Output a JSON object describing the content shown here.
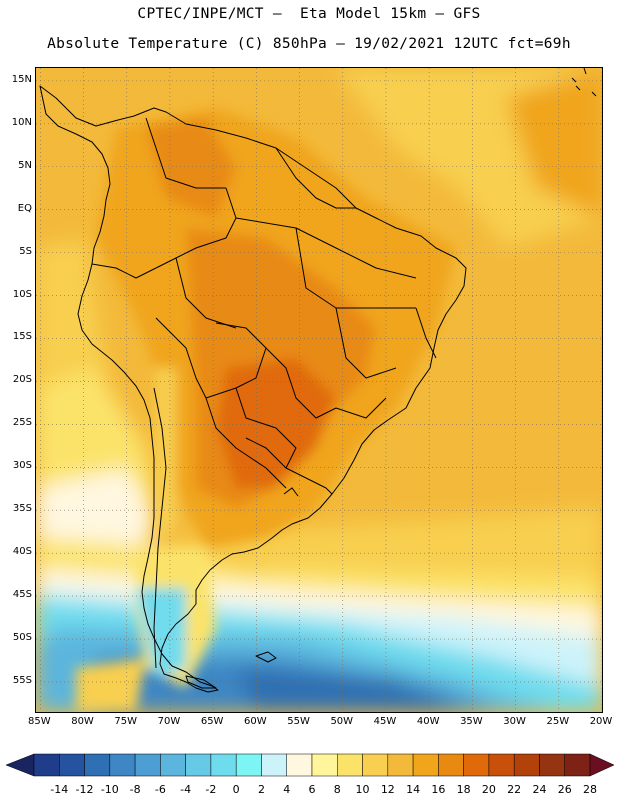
{
  "header": {
    "title_line1": "CPTEC/INPE/MCT –  Eta Model 15km – GFS",
    "title_line2": "Absolute Temperature (C) 850hPa – 19/02/2021 12UTC fct=69h"
  },
  "map": {
    "lon_range": [
      -85.5,
      -20
    ],
    "lat_range": [
      -58.5,
      16.5
    ],
    "lat_labels": [
      "15N",
      "10N",
      "5N",
      "EQ",
      "5S",
      "10S",
      "15S",
      "20S",
      "25S",
      "30S",
      "35S",
      "40S",
      "45S",
      "50S",
      "55S"
    ],
    "lat_values": [
      15,
      10,
      5,
      0,
      -5,
      -10,
      -15,
      -20,
      -25,
      -30,
      -35,
      -40,
      -45,
      -50,
      -55
    ],
    "lon_labels": [
      "85W",
      "80W",
      "75W",
      "70W",
      "65W",
      "60W",
      "55W",
      "50W",
      "45W",
      "40W",
      "35W",
      "30W",
      "25W",
      "20W"
    ],
    "lon_values": [
      -85,
      -80,
      -75,
      -70,
      -65,
      -60,
      -55,
      -50,
      -45,
      -40,
      -35,
      -30,
      -25,
      -20
    ]
  },
  "colorbar": {
    "labels": [
      "-14",
      "-12",
      "-10",
      "-8",
      "-6",
      "-4",
      "-2",
      "0",
      "2",
      "4",
      "6",
      "8",
      "10",
      "12",
      "14",
      "16",
      "18",
      "20",
      "22",
      "24",
      "26",
      "28"
    ],
    "colors": [
      "#1f3d8a",
      "#2553a0",
      "#2f6fb3",
      "#3e86c4",
      "#4d9fd3",
      "#5bb5dd",
      "#66c9e6",
      "#6fdcee",
      "#7ef5f5",
      "#cdf3fa",
      "#fff7e0",
      "#fff59a",
      "#fbe36a",
      "#f8cf50",
      "#f3b93a",
      "#f0a51b",
      "#e88a12",
      "#e06a0a",
      "#c9500a",
      "#b2410a",
      "#953411",
      "#7e2216"
    ],
    "left_arrow": "#1a2560",
    "right_arrow": "#6a0f22"
  }
}
